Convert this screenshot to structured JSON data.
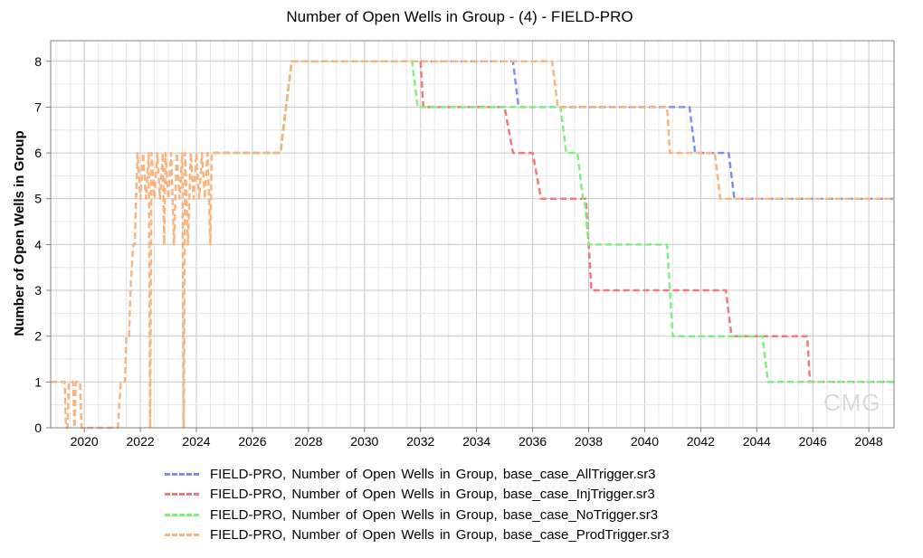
{
  "chart_data": {
    "type": "line",
    "title": "Number of Open Wells in Group - (4) - FIELD-PRO",
    "xlabel": "",
    "ylabel": "Number of Open Wells in Group",
    "xlim": [
      2018.8,
      2048.9
    ],
    "ylim": [
      0,
      8.45
    ],
    "x_ticks": [
      2020,
      2022,
      2024,
      2026,
      2028,
      2030,
      2032,
      2034,
      2036,
      2038,
      2040,
      2042,
      2044,
      2046,
      2048
    ],
    "y_ticks": [
      0,
      1,
      2,
      3,
      4,
      5,
      6,
      7,
      8
    ],
    "grid": true,
    "legend_position": "bottom",
    "series": [
      {
        "name": "FIELD-PRO, Number of Open Wells in Group, base_case_AllTrigger.sr3",
        "color": "#7f8ff0",
        "points": [
          [
            2024.6,
            6
          ],
          [
            2027.0,
            6
          ],
          [
            2027.4,
            8
          ],
          [
            2035.3,
            8
          ],
          [
            2035.5,
            7
          ],
          [
            2041.6,
            7
          ],
          [
            2041.8,
            6
          ],
          [
            2043.0,
            6
          ],
          [
            2043.2,
            5
          ],
          [
            2048.9,
            5
          ]
        ]
      },
      {
        "name": "FIELD-PRO, Number of Open Wells in Group, base_case_InjTrigger.sr3",
        "color": "#f57878",
        "points": [
          [
            2024.6,
            6
          ],
          [
            2027.0,
            6
          ],
          [
            2027.4,
            8
          ],
          [
            2032.0,
            8
          ],
          [
            2032.1,
            7
          ],
          [
            2035.0,
            7
          ],
          [
            2035.3,
            6
          ],
          [
            2036.0,
            6
          ],
          [
            2036.3,
            5
          ],
          [
            2037.9,
            5
          ],
          [
            2038.1,
            3
          ],
          [
            2042.9,
            3
          ],
          [
            2043.1,
            2
          ],
          [
            2045.8,
            2
          ],
          [
            2045.9,
            1
          ],
          [
            2048.9,
            1
          ]
        ]
      },
      {
        "name": "FIELD-PRO, Number of Open Wells in Group, base_case_NoTrigger.sr3",
        "color": "#7ff07f",
        "points": [
          [
            2024.6,
            6
          ],
          [
            2027.0,
            6
          ],
          [
            2027.4,
            8
          ],
          [
            2031.7,
            8
          ],
          [
            2031.9,
            7
          ],
          [
            2037.0,
            7
          ],
          [
            2037.2,
            6
          ],
          [
            2037.6,
            6
          ],
          [
            2037.8,
            5
          ],
          [
            2037.85,
            5
          ],
          [
            2038.0,
            4
          ],
          [
            2040.8,
            4
          ],
          [
            2041.0,
            2
          ],
          [
            2044.2,
            2
          ],
          [
            2044.4,
            1
          ],
          [
            2048.9,
            1
          ]
        ]
      },
      {
        "name": "FIELD-PRO, Number of Open Wells in Group, base_case_ProdTrigger.sr3",
        "color": "#f8b481",
        "points": [
          [
            2018.8,
            1
          ],
          [
            2019.3,
            1
          ],
          [
            2019.35,
            0
          ],
          [
            2019.4,
            0
          ],
          [
            2019.45,
            1
          ],
          [
            2019.6,
            1
          ],
          [
            2019.65,
            0
          ],
          [
            2019.7,
            1
          ],
          [
            2019.85,
            1
          ],
          [
            2019.9,
            0
          ],
          [
            2021.2,
            0
          ],
          [
            2021.3,
            1
          ],
          [
            2021.45,
            1
          ],
          [
            2021.5,
            2
          ],
          [
            2021.6,
            2
          ],
          [
            2021.65,
            3
          ],
          [
            2021.75,
            4
          ],
          [
            2021.8,
            4
          ],
          [
            2021.85,
            5
          ],
          [
            2021.9,
            6
          ],
          [
            2022.0,
            5
          ],
          [
            2022.1,
            6
          ],
          [
            2022.2,
            5
          ],
          [
            2022.3,
            6
          ],
          [
            2022.35,
            0
          ],
          [
            2022.4,
            6
          ],
          [
            2022.5,
            5
          ],
          [
            2022.6,
            6
          ],
          [
            2022.7,
            5
          ],
          [
            2022.8,
            6
          ],
          [
            2022.85,
            4
          ],
          [
            2022.9,
            6
          ],
          [
            2023.0,
            5
          ],
          [
            2023.1,
            6
          ],
          [
            2023.2,
            4
          ],
          [
            2023.3,
            6
          ],
          [
            2023.4,
            5
          ],
          [
            2023.5,
            6
          ],
          [
            2023.55,
            0
          ],
          [
            2023.6,
            6
          ],
          [
            2023.7,
            4
          ],
          [
            2023.8,
            6
          ],
          [
            2023.9,
            5
          ],
          [
            2024.0,
            6
          ],
          [
            2024.1,
            5
          ],
          [
            2024.2,
            6
          ],
          [
            2024.3,
            5
          ],
          [
            2024.4,
            6
          ],
          [
            2024.5,
            4
          ],
          [
            2024.55,
            6
          ],
          [
            2027.0,
            6
          ],
          [
            2027.4,
            8
          ],
          [
            2036.7,
            8
          ],
          [
            2036.9,
            7
          ],
          [
            2040.8,
            7
          ],
          [
            2040.9,
            6
          ],
          [
            2042.5,
            6
          ],
          [
            2042.7,
            5
          ],
          [
            2048.9,
            5
          ]
        ]
      }
    ]
  },
  "watermark": "CMG"
}
